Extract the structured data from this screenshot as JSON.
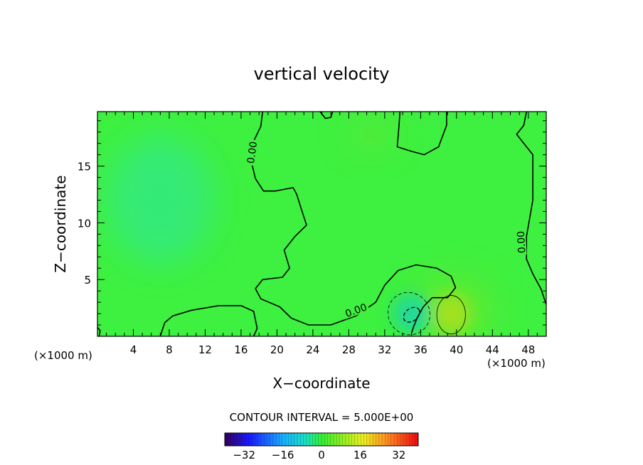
{
  "chart_data": {
    "type": "heatmap",
    "title": "vertical velocity",
    "xlabel": "X−coordinate",
    "ylabel": "Z−coordinate",
    "xlim": [
      0,
      50
    ],
    "ylim": [
      0,
      19.8
    ],
    "x_ticks": [
      4,
      8,
      12,
      16,
      20,
      24,
      28,
      32,
      36,
      40,
      44,
      48
    ],
    "y_ticks": [
      5,
      10,
      15
    ],
    "x_tick_labels": [
      "4",
      "8",
      "12",
      "16",
      "20",
      "24",
      "28",
      "32",
      "36",
      "40",
      "44",
      "48"
    ],
    "y_tick_labels": [
      "5",
      "10",
      "15"
    ],
    "x_unit_left": "(×1000 m)",
    "x_unit_right": "(×1000 m)",
    "contour_interval_text": "CONTOUR INTERVAL = 5.000E+00",
    "colorbar": {
      "min": -40,
      "max": 40,
      "tick_values": [
        -32,
        -16,
        0,
        16,
        32
      ],
      "tick_labels": [
        "−32",
        "−16",
        "0",
        "16",
        "32"
      ]
    },
    "features": [
      {
        "kind": "downdraft",
        "x": 35,
        "z": 2,
        "value": -10
      },
      {
        "kind": "updraft",
        "x": 39.5,
        "z": 2,
        "value": 6
      },
      {
        "kind": "weak_downdraft",
        "x": 7,
        "z": 12,
        "value": -3
      }
    ],
    "contour_labels": [
      {
        "text": "0.00",
        "x": 17.2,
        "z": 16.2,
        "rot": -82
      },
      {
        "text": "0.00",
        "x": 28.8,
        "z": 2.3,
        "rot": -20
      },
      {
        "text": "0.00",
        "x": 47.2,
        "z": 8.3,
        "rot": -93
      }
    ],
    "zero_contours": [
      [
        [
          18.4,
          19.8
        ],
        [
          18.2,
          18.5
        ],
        [
          17.4,
          17.2
        ],
        [
          17.2,
          15.2
        ],
        [
          17.6,
          13.9
        ],
        [
          18.5,
          12.8
        ],
        [
          19.8,
          12.8
        ],
        [
          21.8,
          13.1
        ],
        [
          22.2,
          12.5
        ],
        [
          22.8,
          11.0
        ],
        [
          23.3,
          9.8
        ],
        [
          22.0,
          8.8
        ],
        [
          20.8,
          7.6
        ],
        [
          21.4,
          6.0
        ],
        [
          20.6,
          5.2
        ],
        [
          18.4,
          5.0
        ],
        [
          17.6,
          4.2
        ],
        [
          18.2,
          3.3
        ],
        [
          20.3,
          2.6
        ],
        [
          21.6,
          1.6
        ],
        [
          23.5,
          1.0
        ],
        [
          26.0,
          1.0
        ],
        [
          28.8,
          1.8
        ],
        [
          31.0,
          3.0
        ],
        [
          32.0,
          4.5
        ],
        [
          33.5,
          5.8
        ],
        [
          35.5,
          6.3
        ],
        [
          37.8,
          6.0
        ],
        [
          39.4,
          5.3
        ],
        [
          39.9,
          4.3
        ],
        [
          39.0,
          3.4
        ],
        [
          37.3,
          3.4
        ]
      ],
      [
        [
          37.3,
          3.4
        ],
        [
          36.3,
          2.6
        ],
        [
          35.6,
          1.6
        ],
        [
          35.2,
          0.8
        ],
        [
          35.0,
          0.3
        ]
      ],
      [
        [
          7.0,
          0
        ],
        [
          7.5,
          1.2
        ],
        [
          8.4,
          1.8
        ],
        [
          10.5,
          2.3
        ],
        [
          13.5,
          2.7
        ],
        [
          16.0,
          2.7
        ],
        [
          17.4,
          2.2
        ],
        [
          17.8,
          0.7
        ],
        [
          17.4,
          0
        ]
      ],
      [
        [
          0,
          0.8
        ],
        [
          0.3,
          0.5
        ],
        [
          0.2,
          0
        ]
      ],
      [
        [
          24.8,
          19.8
        ],
        [
          25.4,
          19.2
        ],
        [
          26.0,
          19.3
        ],
        [
          26.2,
          19.8
        ]
      ],
      [
        [
          33.7,
          19.8
        ],
        [
          33.6,
          18.6
        ],
        [
          33.4,
          16.7
        ],
        [
          35.0,
          16.3
        ],
        [
          36.4,
          16.0
        ],
        [
          38.0,
          16.7
        ],
        [
          38.9,
          18.6
        ],
        [
          38.9,
          19.8
        ]
      ],
      [
        [
          47.8,
          19.8
        ],
        [
          47.5,
          18.6
        ],
        [
          46.7,
          17.8
        ],
        [
          47.3,
          17.2
        ],
        [
          48.5,
          16.0
        ],
        [
          48.5,
          12.0
        ],
        [
          47.8,
          8.8
        ],
        [
          47.8,
          6.8
        ],
        [
          48.5,
          5.5
        ],
        [
          49.4,
          4.2
        ],
        [
          50.0,
          2.8
        ]
      ]
    ],
    "dashed_contours": [
      {
        "cx": 34.7,
        "cz": 2.0,
        "rx": 2.3,
        "rz": 1.9,
        "rot": -38,
        "weight": 0.8
      },
      {
        "cx": 35.0,
        "cz": 1.9,
        "rx": 1.0,
        "rz": 0.55,
        "rot": -38,
        "weight": 1.3
      }
    ],
    "solid_loops": [
      {
        "cx": 39.4,
        "cz": 1.9,
        "rx": 1.6,
        "rz": 1.7,
        "rot": 0
      }
    ]
  }
}
